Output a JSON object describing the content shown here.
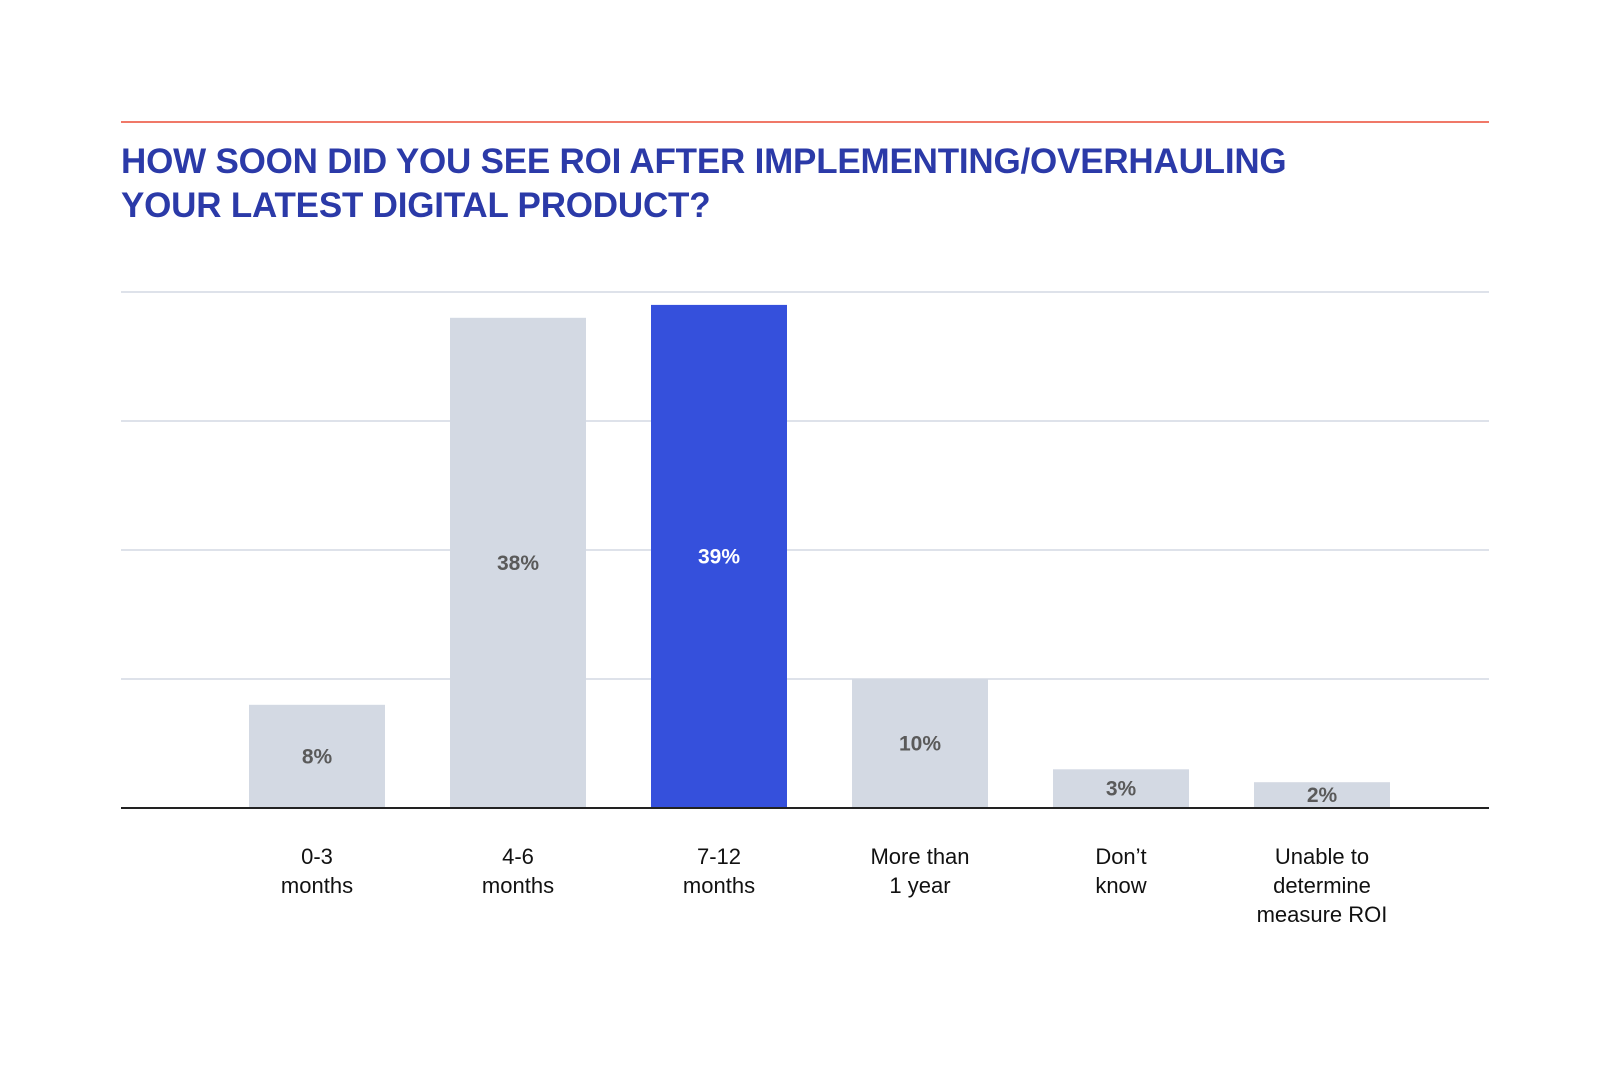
{
  "title_lines": [
    "HOW SOON DID YOU SEE ROI AFTER IMPLEMENTING/OVERHAULING",
    "YOUR LATEST DIGITAL PRODUCT?"
  ],
  "colors": {
    "title": "#2b3aa8",
    "rule": "#f07868",
    "bar_default": "#d3d9e3",
    "bar_highlight": "#3550dc",
    "label_default": "#5a5a5a",
    "label_highlight": "#ffffff",
    "grid": "#d3d9e3",
    "axis": "#222222"
  },
  "chart_data": {
    "type": "bar",
    "title": "HOW SOON DID YOU SEE ROI AFTER IMPLEMENTING/OVERHAULING YOUR LATEST DIGITAL PRODUCT?",
    "categories": [
      [
        "0-3",
        "months"
      ],
      [
        "4-6",
        "months"
      ],
      [
        "7-12",
        "months"
      ],
      [
        "More than",
        "1 year"
      ],
      [
        "Don’t",
        "know"
      ],
      [
        "Unable to",
        "determine",
        "measure ROI"
      ]
    ],
    "values": [
      8,
      38,
      39,
      10,
      3,
      2
    ],
    "value_labels": [
      "8%",
      "38%",
      "39%",
      "10%",
      "3%",
      "2%"
    ],
    "highlight_index": 2,
    "unit": "%",
    "ylim": [
      0,
      40
    ],
    "gridlines": [
      0,
      10,
      20,
      30,
      40
    ],
    "xlabel": "",
    "ylabel": "",
    "legend": "none"
  }
}
